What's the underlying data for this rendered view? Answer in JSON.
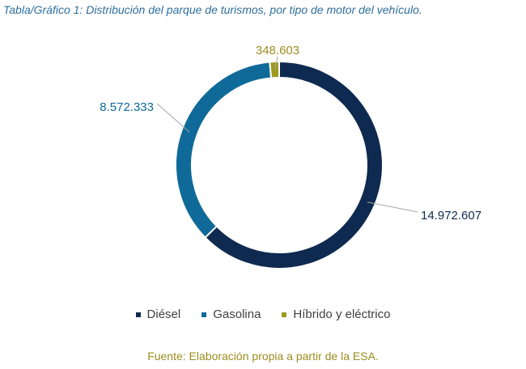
{
  "title": "Tabla/Gráfico 1: Distribución del parque de turismos, por tipo de motor del vehículo.",
  "source": "Fuente: Elaboración propia a partir de la ESA.",
  "colors": {
    "title": "#2e6f9e",
    "source": "#9c8d1f"
  },
  "chart_data": {
    "type": "pie",
    "variant": "donut",
    "legend_position": "bottom",
    "categories": [
      "Diésel",
      "Gasolina",
      "Híbrido y eléctrico"
    ],
    "values": [
      14972607,
      8572333,
      348603
    ],
    "data_labels": [
      "14.972.607",
      "8.572.333",
      "348.603"
    ],
    "colors": [
      "#0e2a50",
      "#0f6a99",
      "#9c9a1f"
    ],
    "label_colors": [
      "#0e2a50",
      "#0f6a99",
      "#9c8d1f"
    ]
  }
}
